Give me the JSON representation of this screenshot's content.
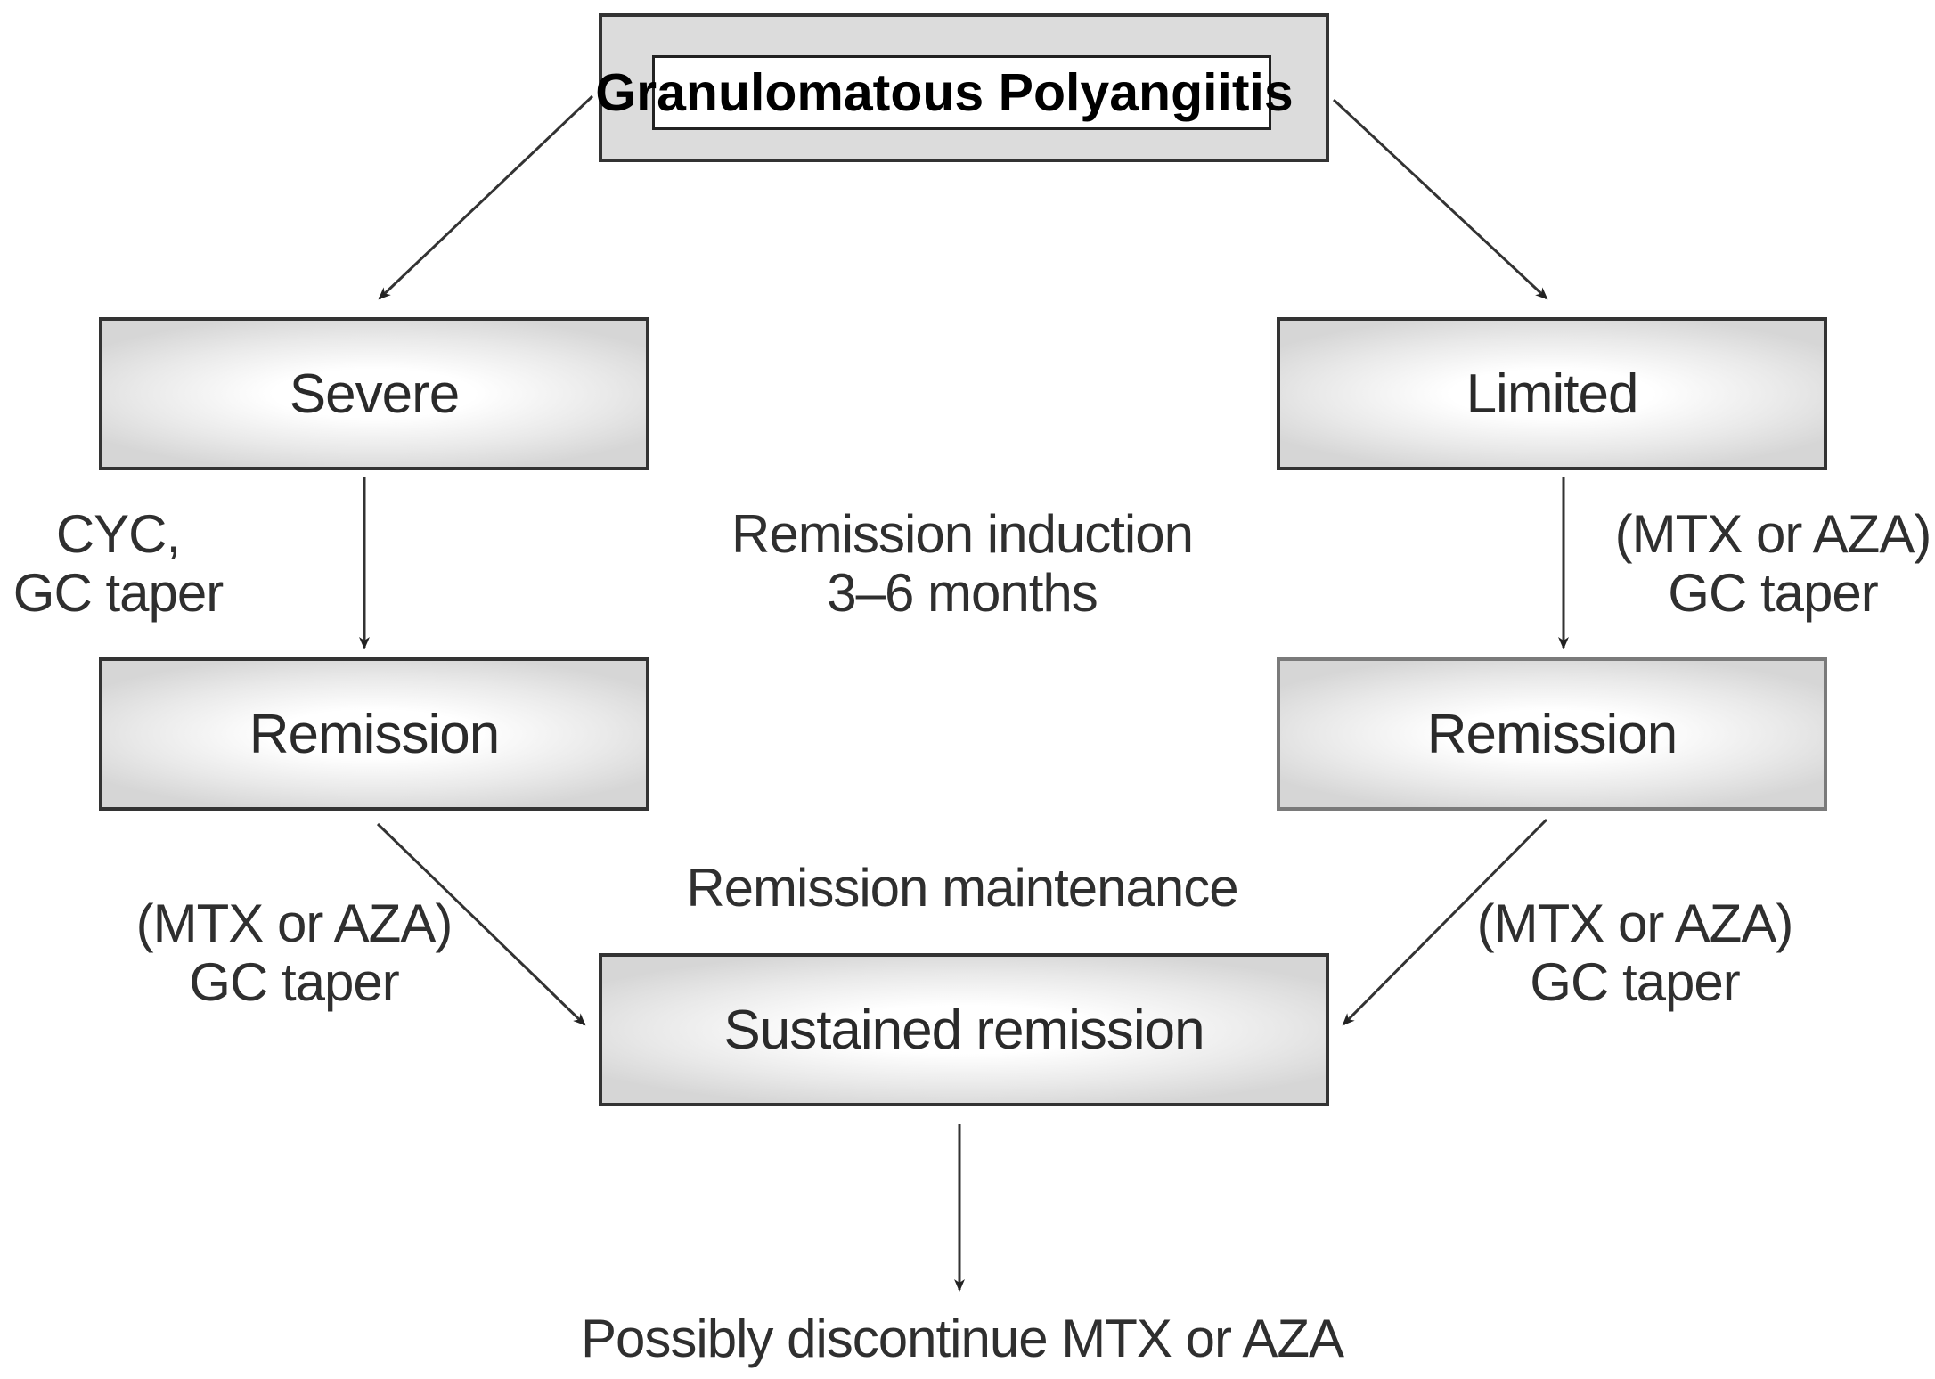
{
  "title": "Granulomatous Polyangiitis",
  "boxes": {
    "severe": "Severe",
    "limited": "Limited",
    "remission_left": "Remission",
    "remission_right": "Remission",
    "sustained": "Sustained remission"
  },
  "notes": {
    "severe_therapy": [
      "CYC,",
      "GC taper"
    ],
    "limited_therapy": [
      "(MTX or AZA)",
      "GC taper"
    ],
    "induction": [
      "Remission induction",
      "3–6 months"
    ],
    "maintenance": "Remission maintenance",
    "left_maintenance": [
      "(MTX or AZA)",
      "GC taper"
    ],
    "right_maintenance": [
      "(MTX or AZA)",
      "GC taper"
    ],
    "outcome": "Possibly discontinue MTX or AZA"
  },
  "colors": {
    "border": "#333333",
    "box_fill_center": "#ffffff",
    "box_fill_edge": "#d6d6d6",
    "text": "#2a2a2a"
  }
}
